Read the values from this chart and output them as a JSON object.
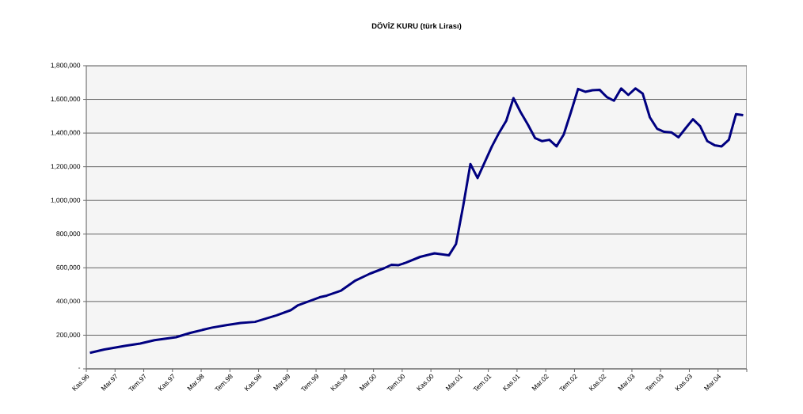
{
  "chart_data": {
    "type": "line",
    "title": "DÖVİZ KURU (türk Lirası)",
    "x": [
      "1996-11-16",
      "1997-01-16",
      "1997-04-16",
      "1997-06-16",
      "1997-08-16",
      "1997-11-16",
      "1998-01-16",
      "1998-04-16",
      "1998-06-16",
      "1998-08-16",
      "1998-10-16",
      "1999-01-16",
      "1999-03-16",
      "1999-04-16",
      "1999-07-16",
      "1999-08-16",
      "1999-10-16",
      "1999-12-16",
      "2000-02-16",
      "2000-04-16",
      "2000-05-16",
      "2000-06-16",
      "2000-07-16",
      "2000-09-16",
      "2000-11-16",
      "2001-01-16",
      "2001-02-16",
      "2001-03-16",
      "2001-04-16",
      "2001-05-16",
      "2001-06-16",
      "2001-07-16",
      "2001-08-16",
      "2001-09-16",
      "2001-10-16",
      "2001-11-16",
      "2001-12-16",
      "2002-01-16",
      "2002-02-16",
      "2002-03-16",
      "2002-04-16",
      "2002-05-16",
      "2002-06-16",
      "2002-07-16",
      "2002-08-16",
      "2002-09-16",
      "2002-10-16",
      "2002-11-16",
      "2002-12-16",
      "2003-01-16",
      "2003-02-16",
      "2003-03-16",
      "2003-04-16",
      "2003-05-16",
      "2003-06-16",
      "2003-07-16",
      "2003-08-16",
      "2003-09-16",
      "2003-10-16",
      "2003-11-16",
      "2003-12-16",
      "2004-01-16",
      "2004-02-16",
      "2004-03-16",
      "2004-04-16",
      "2004-05-16",
      "2004-06-16"
    ],
    "series": [
      {
        "color": "#000080",
        "values": [
          95000,
          115000,
          137000,
          150000,
          170000,
          188000,
          214000,
          245000,
          260000,
          272000,
          279000,
          318000,
          349000,
          378000,
          425000,
          435000,
          465000,
          525000,
          565000,
          598000,
          618000,
          616000,
          630000,
          665000,
          686000,
          674000,
          741000,
          968000,
          1216000,
          1133000,
          1227000,
          1321000,
          1402000,
          1473000,
          1607000,
          1524000,
          1451000,
          1371000,
          1352000,
          1360000,
          1321000,
          1391000,
          1524000,
          1662000,
          1645000,
          1654000,
          1657000,
          1614000,
          1592000,
          1665000,
          1626000,
          1665000,
          1634000,
          1493000,
          1426000,
          1407000,
          1404000,
          1375000,
          1430000,
          1482000,
          1441000,
          1352000,
          1328000,
          1321000,
          1360000,
          1512000,
          1506000
        ]
      }
    ],
    "xlim": [
      "1996-11",
      "2004-07"
    ],
    "xticks": [
      {
        "value": "1996-11",
        "label": "Kas.96"
      },
      {
        "value": "1997-03",
        "label": "Mar.97"
      },
      {
        "value": "1997-07",
        "label": "Tem.97"
      },
      {
        "value": "1997-11",
        "label": "Kas.97"
      },
      {
        "value": "1998-03",
        "label": "Mar.98"
      },
      {
        "value": "1998-07",
        "label": "Tem.98"
      },
      {
        "value": "1998-11",
        "label": "Kas.98"
      },
      {
        "value": "1999-03",
        "label": "Mar.99"
      },
      {
        "value": "1999-07",
        "label": "Tem.99"
      },
      {
        "value": "1999-11",
        "label": "Kas.99"
      },
      {
        "value": "2000-03",
        "label": "Mar.00"
      },
      {
        "value": "2000-07",
        "label": "Tem.00"
      },
      {
        "value": "2000-11",
        "label": "Kas.00"
      },
      {
        "value": "2001-03",
        "label": "Mar.01"
      },
      {
        "value": "2001-07",
        "label": "Tem.01"
      },
      {
        "value": "2001-11",
        "label": "Kas.01"
      },
      {
        "value": "2002-03",
        "label": "Mar.02"
      },
      {
        "value": "2002-07",
        "label": "Tem.02"
      },
      {
        "value": "2002-11",
        "label": "Kas.02"
      },
      {
        "value": "2003-03",
        "label": "Mar.03"
      },
      {
        "value": "2003-07",
        "label": "Tem.03"
      },
      {
        "value": "2003-11",
        "label": "Kas.03"
      },
      {
        "value": "2004-03",
        "label": "Mar.04"
      },
      {
        "value": "2004-07",
        "label": null
      }
    ],
    "ylim": [
      0,
      1800000
    ],
    "yticks": [
      {
        "value": 0,
        "label": "-"
      },
      {
        "value": 200000,
        "label": "200,000"
      },
      {
        "value": 400000,
        "label": "400,000"
      },
      {
        "value": 600000,
        "label": "600,000"
      },
      {
        "value": 800000,
        "label": "800,000"
      },
      {
        "value": 1000000,
        "label": "1,000,000"
      },
      {
        "value": 1200000,
        "label": "1,200,000"
      },
      {
        "value": 1400000,
        "label": "1,400,000"
      },
      {
        "value": 1600000,
        "label": "1,600,000"
      },
      {
        "value": 1800000,
        "label": "1,800,000"
      }
    ],
    "grid": "y",
    "marker": "none",
    "line_style": "solid"
  }
}
